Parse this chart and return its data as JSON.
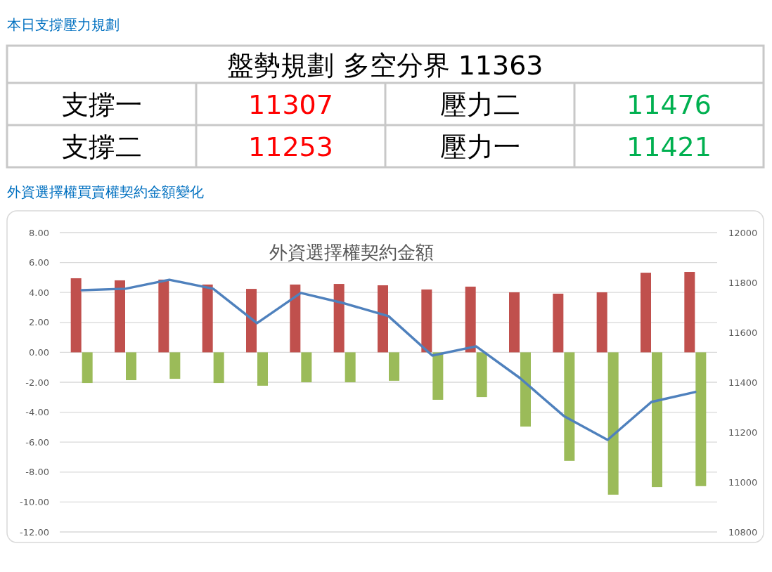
{
  "chart_data": [
    {
      "type": "other",
      "title": "本日支撐壓力規劃",
      "subtitle": "盤勢規劃 多空分界 11363",
      "categories": [
        "支撐一",
        "壓力二",
        "支撐二",
        "壓力一"
      ],
      "values": [
        11307,
        11476,
        11253,
        11421
      ],
      "data_labels": true,
      "colors": [
        "#ff0000",
        "#00b050",
        "#ff0000",
        "#00b050"
      ]
    },
    {
      "type": "bar",
      "title": "外資選擇權買賣權契約金額變化",
      "subtitle": "外資選擇權契約金額",
      "categories": [
        null,
        null,
        null,
        null,
        null,
        null,
        null,
        null,
        null,
        null,
        null,
        null,
        null,
        null,
        null
      ],
      "series": [
        {
          "type": "bar",
          "color": "#c0504d",
          "values": [
            4.95,
            4.81,
            4.86,
            4.53,
            4.24,
            4.53,
            4.57,
            4.48,
            4.2,
            4.39,
            4.01,
            3.92,
            4.01,
            5.32,
            5.37
          ]
        },
        {
          "type": "bar",
          "color": "#9bbb59",
          "values": [
            -2.05,
            -1.86,
            -1.77,
            -2.05,
            -2.23,
            -2.0,
            -2.0,
            -1.9,
            -3.17,
            -2.99,
            -4.96,
            -7.25,
            -9.51,
            -9.0,
            -8.94
          ]
        },
        {
          "type": "line",
          "axis": "y2",
          "color": "#4f81bd",
          "values": [
            11769,
            11775,
            11811,
            11775,
            11637,
            11758,
            11716,
            11665,
            11507,
            11544,
            11417,
            11265,
            11169,
            11321,
            11361
          ]
        }
      ],
      "ylim": [
        -12,
        8
      ],
      "yticks": [
        {
          "value": 8,
          "label": "8.00"
        },
        {
          "value": 6,
          "label": "6.00"
        },
        {
          "value": 4,
          "label": "4.00"
        },
        {
          "value": 2,
          "label": "2.00"
        },
        {
          "value": 0,
          "label": "0.00"
        },
        {
          "value": -2,
          "label": "-2.00"
        },
        {
          "value": -4,
          "label": "-4.00"
        },
        {
          "value": -6,
          "label": "-6.00"
        },
        {
          "value": -8,
          "label": "-8.00"
        },
        {
          "value": -10,
          "label": "-10.00"
        },
        {
          "value": -12,
          "label": "-12.00"
        }
      ],
      "grid": "y",
      "y2lim": [
        10800,
        12000
      ],
      "y2ticks": [
        {
          "value": 12000,
          "label": "12000"
        },
        {
          "value": 11800,
          "label": "11800"
        },
        {
          "value": 11600,
          "label": "11600"
        },
        {
          "value": 11400,
          "label": "11400"
        },
        {
          "value": 11200,
          "label": "11200"
        },
        {
          "value": 11000,
          "label": "11000"
        },
        {
          "value": 10800,
          "label": "10800"
        }
      ]
    }
  ]
}
